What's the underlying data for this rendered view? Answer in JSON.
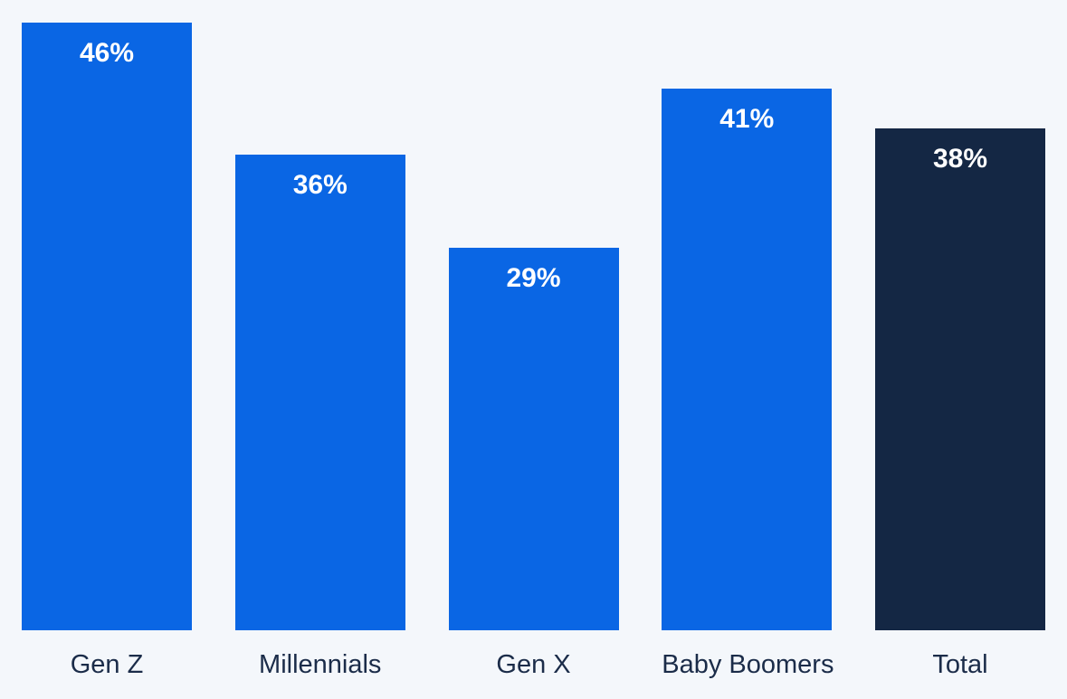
{
  "chart_data": {
    "type": "bar",
    "categories": [
      "Gen Z",
      "Millennials",
      "Gen X",
      "Baby Boomers",
      "Total"
    ],
    "values": [
      46,
      36,
      29,
      41,
      38
    ],
    "value_labels": [
      "46%",
      "36%",
      "29%",
      "41%",
      "38%"
    ],
    "bar_colors": [
      "#0a66e4",
      "#0a66e4",
      "#0a66e4",
      "#0a66e4",
      "#142744"
    ],
    "title": "",
    "xlabel": "",
    "ylabel": "",
    "ylim": [
      0,
      47.8
    ],
    "grid": false,
    "legend": false,
    "value_label_color": "#ffffff",
    "category_label_color": "#1b2c49",
    "background_color": "#f4f7fb"
  }
}
